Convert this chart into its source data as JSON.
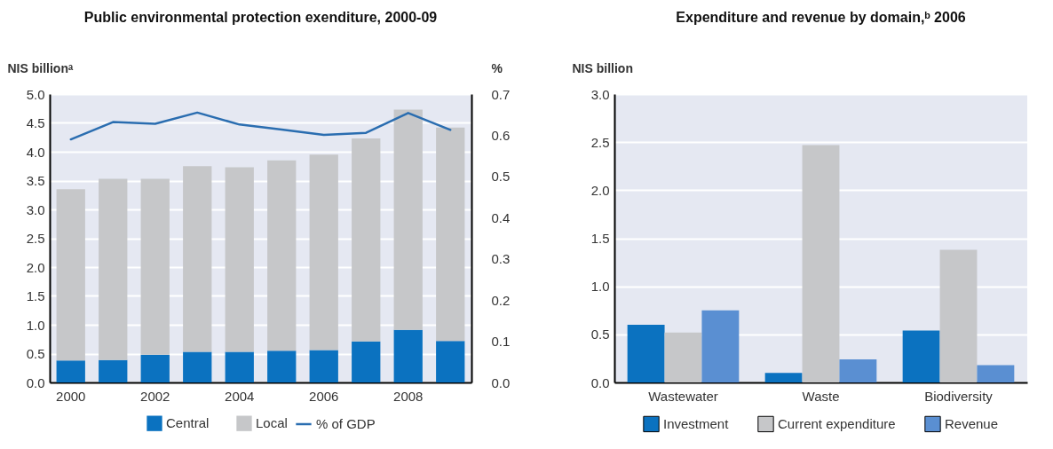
{
  "chart_data": [
    {
      "type": "bar",
      "title": "Public environmental protection exenditure, 2000-09",
      "ylabel": "NIS billionᵃ",
      "y2label": "%",
      "stacked": true,
      "grid": "y",
      "legend": "bottom",
      "categories": [
        "2000",
        null,
        "2002",
        null,
        "2004",
        null,
        "2006",
        null,
        "2008",
        null
      ],
      "ylim": [
        0,
        5
      ],
      "yticks": [
        {
          "value": 0,
          "label": "0.0"
        },
        0.5,
        {
          "value": 1,
          "label": "1.0"
        },
        1.5,
        {
          "value": 2,
          "label": "2.0"
        },
        2.5,
        {
          "value": 3,
          "label": "3.0"
        },
        3.5,
        {
          "value": 4,
          "label": "4.0"
        },
        4.5,
        {
          "value": 5,
          "label": "5.0"
        }
      ],
      "y2lim": [
        0,
        0.7
      ],
      "y2ticks": [
        {
          "value": 0,
          "label": "0.0"
        },
        0.1,
        0.2,
        0.3,
        0.4,
        0.5,
        0.6,
        0.7
      ],
      "series": [
        {
          "name": "Central",
          "color": "#0b72c0",
          "values": [
            0.38,
            0.39,
            0.48,
            0.53,
            0.53,
            0.55,
            0.56,
            0.71,
            0.91,
            0.72
          ]
        },
        {
          "name": "Local",
          "color": "#c6c7c9",
          "values": [
            2.97,
            3.14,
            3.05,
            3.22,
            3.2,
            3.3,
            3.39,
            3.52,
            3.82,
            3.7
          ]
        },
        {
          "name": "% of GDP",
          "type": "line",
          "axis": "y2",
          "color": "#2a6db0",
          "values": [
            0.59,
            0.632,
            0.628,
            0.655,
            0.626,
            0.614,
            0.601,
            0.606,
            0.654,
            0.613
          ]
        }
      ]
    },
    {
      "type": "bar",
      "title": "Expenditure and revenue by domain,ᵇ 2006",
      "ylabel": "NIS billion",
      "grid": "y",
      "legend": "bottom",
      "categories": [
        "Wastewater",
        "Waste",
        "Biodiversity"
      ],
      "ylim": [
        0,
        3
      ],
      "yticks": [
        {
          "value": 0,
          "label": "0.0"
        },
        0.5,
        {
          "value": 1,
          "label": "1.0"
        },
        1.5,
        {
          "value": 2,
          "label": "2.0"
        },
        2.5,
        {
          "value": 3,
          "label": "3.0"
        }
      ],
      "series": [
        {
          "name": "Investment",
          "color": "#0b72c0",
          "values": [
            0.6,
            0.1,
            0.54
          ]
        },
        {
          "name": "Current expenditure",
          "color": "#c6c7c9",
          "values": [
            0.52,
            2.47,
            1.38
          ]
        },
        {
          "name": "Revenue",
          "color": "#5a8fd2",
          "values": [
            0.75,
            0.24,
            0.18
          ]
        }
      ]
    }
  ]
}
